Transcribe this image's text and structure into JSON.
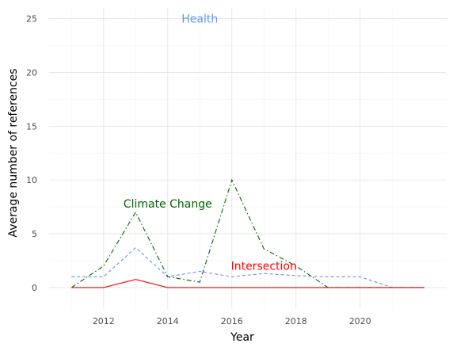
{
  "chart_data": {
    "type": "line",
    "title": "",
    "xlabel": "Year",
    "ylabel": "Average number of references",
    "xlim": [
      2010.3,
      2022.7
    ],
    "ylim": [
      -2,
      26
    ],
    "x_ticks": [
      2012,
      2014,
      2016,
      2018,
      2020
    ],
    "y_ticks": [
      0,
      5,
      10,
      15,
      20,
      25
    ],
    "x_tick_labels": [
      "2012",
      "2014",
      "2016",
      "2018",
      "2020"
    ],
    "y_tick_labels": [
      "0",
      "5",
      "10",
      "15",
      "20",
      "25"
    ],
    "grid": true,
    "legend": "none",
    "x": [
      2011,
      2012,
      2013,
      2014,
      2015,
      2016,
      2017,
      2018,
      2019,
      2020,
      2021,
      2022
    ],
    "series": [
      {
        "color": "#6495ED",
        "dash": "4,3",
        "values": [
          1.0,
          1.0,
          3.7,
          1.0,
          1.5,
          1.0,
          1.3,
          1.1,
          1.0,
          1.0,
          0.0,
          0.0
        ]
      },
      {
        "color": "#006400",
        "dash": "6,3,1.5,3",
        "values": [
          0.0,
          2.0,
          7.0,
          1.0,
          0.5,
          10.0,
          3.6,
          2.0,
          0.0,
          0.0,
          0.0,
          0.0
        ]
      },
      {
        "color": "#FF0000",
        "dash": "",
        "values": [
          0.0,
          0.0,
          0.75,
          0.0,
          0.0,
          0.0,
          0.0,
          0.0,
          0.0,
          0.0,
          0.0,
          0.0
        ]
      }
    ],
    "annotations": [
      {
        "text": "Health",
        "x": 2015.0,
        "y": 25.0,
        "color": "#6495ED"
      },
      {
        "text": "Climate Change",
        "x": 2014.0,
        "y": 7.8,
        "color": "#006400"
      },
      {
        "text": "Intersection",
        "x": 2017.0,
        "y": 2.0,
        "color": "#FF0000"
      }
    ]
  }
}
